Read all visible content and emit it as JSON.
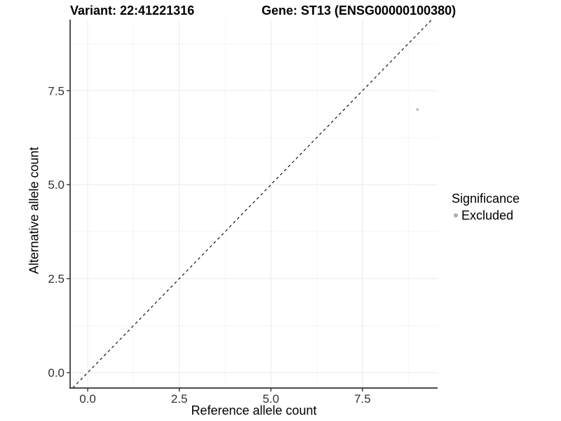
{
  "header": {
    "variant_title": "Variant: 22:41221316",
    "gene_title": "Gene: ST13 (ENSG00000100380)"
  },
  "chart_data": {
    "type": "scatter",
    "xlabel": "Reference allele count",
    "ylabel": "Alternative allele count",
    "xlim": [
      -0.48,
      9.55
    ],
    "ylim": [
      -0.41,
      9.39
    ],
    "x_ticks": {
      "values": [
        0,
        2.5,
        5,
        7.5
      ],
      "labels": [
        "0.0",
        "2.5",
        "5.0",
        "7.5"
      ]
    },
    "y_ticks": {
      "values": [
        0,
        2.5,
        5,
        7.5
      ],
      "labels": [
        "0.0",
        "2.5",
        "5.0",
        "7.5"
      ]
    },
    "x_minor_ticks": [
      1.25,
      3.75,
      6.25,
      8.75
    ],
    "y_minor_ticks": [
      1.25,
      3.75,
      6.25,
      8.75
    ],
    "grid": true,
    "legend_position": "right",
    "reference_line": {
      "type": "identity y=x",
      "style": "dashed",
      "color": "#000000"
    },
    "series": [
      {
        "name": "Excluded",
        "color": "#bdbdbd",
        "points": [
          {
            "x": 9,
            "y": 7
          }
        ]
      }
    ],
    "legend": {
      "title": "Significance",
      "entries": [
        {
          "label": "Excluded",
          "color": "#adadad"
        }
      ]
    }
  },
  "colors": {
    "background": "#ffffff",
    "grid_major": "#ececec",
    "grid_minor": "#f4f4f4",
    "axis": "#333333",
    "tick_text": "#333333",
    "text": "#000000"
  }
}
